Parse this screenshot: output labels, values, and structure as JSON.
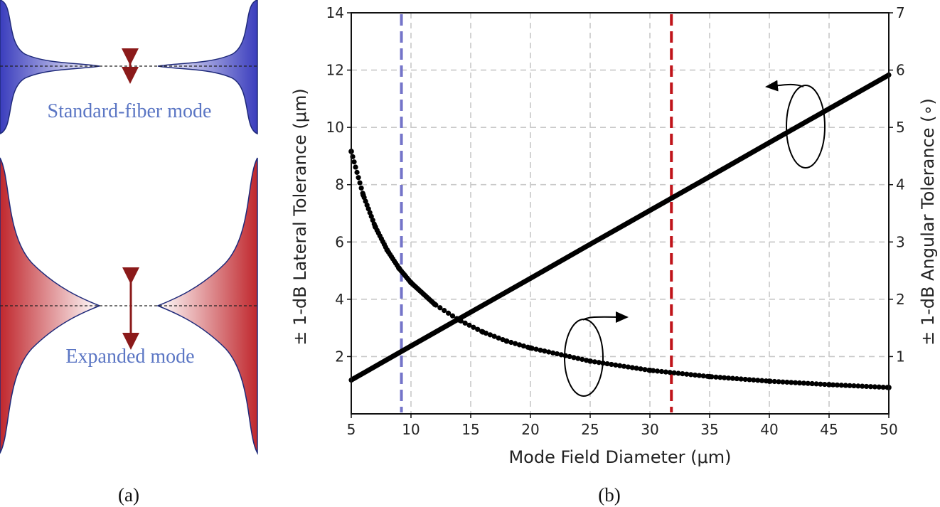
{
  "panel_a": {
    "label": "(a)",
    "top_mode_label": "Standard-fiber mode",
    "bottom_mode_label": "Expanded mode",
    "top_color": "#3a3dbd",
    "bottom_color": "#c0272d",
    "arrow_color": "#8b1a1a"
  },
  "panel_b": {
    "label": "(b)"
  },
  "chart_data": {
    "type": "line",
    "title": "",
    "xlabel": "Mode Field Diameter (μm)",
    "ylabel_left": "± 1-dB Lateral Tolerance (μm)",
    "ylabel_right": "± 1-dB Angular Tolerance (∘)",
    "xlim": [
      5,
      50
    ],
    "ylim_left": [
      0,
      14
    ],
    "ylim_right": [
      0,
      7
    ],
    "x_ticks": [
      "5",
      "10",
      "15",
      "20",
      "25",
      "30",
      "35",
      "40",
      "45",
      "50"
    ],
    "y_left_ticks": [
      "2",
      "4",
      "6",
      "8",
      "10",
      "12",
      "14"
    ],
    "y_right_ticks": [
      "1",
      "2",
      "3",
      "4",
      "5",
      "6",
      "7"
    ],
    "grid": true,
    "series": [
      {
        "axis": "left",
        "style": "solid-thick",
        "x": [
          5,
          10,
          15,
          20,
          25,
          30,
          35,
          40,
          45,
          50
        ],
        "y": [
          1.18,
          2.37,
          3.55,
          4.73,
          5.92,
          7.1,
          8.28,
          9.47,
          10.65,
          11.83
        ]
      },
      {
        "axis": "right",
        "style": "dotted",
        "x": [
          5,
          6,
          7,
          8,
          9,
          10,
          12,
          14,
          16,
          18,
          20,
          25,
          30,
          35,
          40,
          45,
          50
        ],
        "y": [
          4.58,
          3.82,
          3.27,
          2.86,
          2.54,
          2.29,
          1.91,
          1.64,
          1.43,
          1.27,
          1.15,
          0.92,
          0.76,
          0.65,
          0.57,
          0.51,
          0.46
        ]
      }
    ],
    "vertical_lines": [
      {
        "x": 9.2,
        "color": "#7474c9"
      },
      {
        "x": 31.8,
        "color": "#c0141a"
      }
    ]
  }
}
